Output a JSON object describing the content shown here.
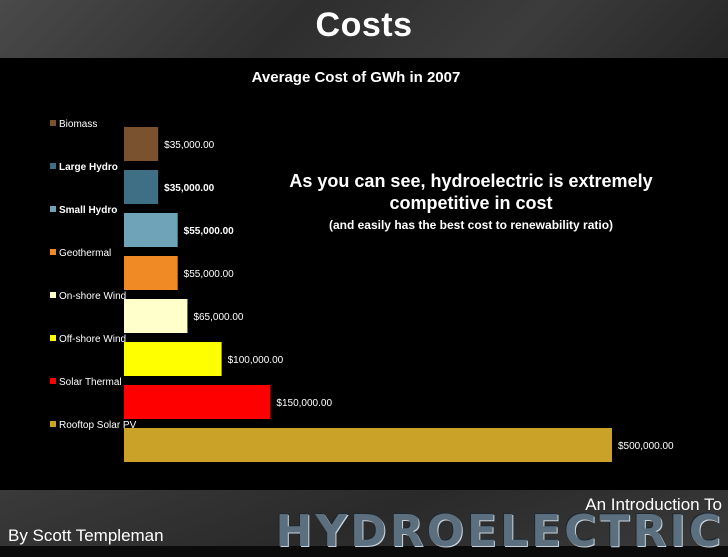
{
  "slide": {
    "title": "Costs",
    "callout_main": "As you can see, hydroelectric is extremely competitive in cost",
    "callout_sub": "(and easily has the best cost to renewability ratio)",
    "footer_intro": "An Introduction To",
    "footer_brand": "HYDROELECTRIC",
    "footer_author": "By Scott Templeman"
  },
  "chart_data": {
    "type": "bar",
    "orientation": "horizontal",
    "title": "Average Cost of GWh in 2007",
    "xlabel": "",
    "ylabel": "",
    "xlim": [
      0,
      500000
    ],
    "grid": false,
    "legend": "left",
    "categories": [
      "Biomass",
      "Large Hydro",
      "Small Hydro",
      "Geothermal",
      "On-shore Wind",
      "Off-shore Wind",
      "Solar Thermal",
      "Rooftop Solar PV"
    ],
    "values": [
      35000,
      35000,
      55000,
      55000,
      65000,
      100000,
      150000,
      500000
    ],
    "data_labels": [
      "$35,000.00",
      "$35,000.00",
      "$55,000.00",
      "$55,000.00",
      "$65,000.00",
      "$100,000.00",
      "$150,000.00",
      "$500,000.00"
    ],
    "colors": [
      "#7a5230",
      "#3f6f85",
      "#6ea3b8",
      "#f08a24",
      "#ffffcc",
      "#ffff00",
      "#ff0000",
      "#c9a227"
    ],
    "bold_categories": [
      "Large Hydro",
      "Small Hydro"
    ]
  }
}
